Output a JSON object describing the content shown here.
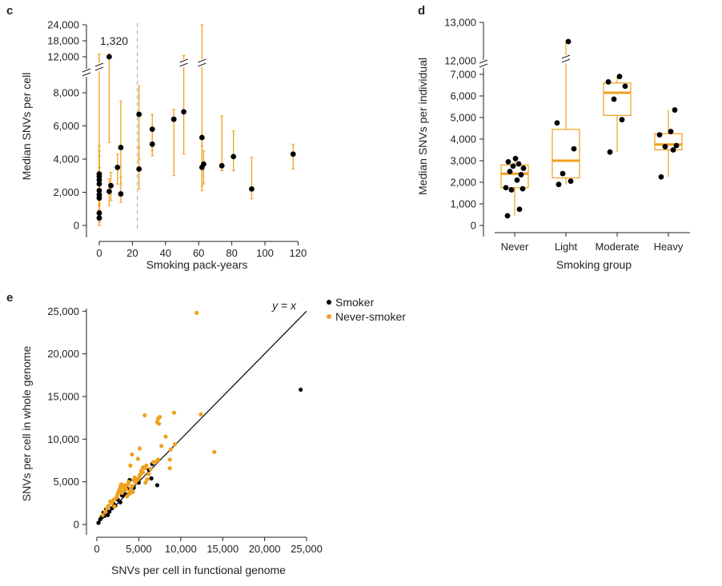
{
  "panels": {
    "c": "c",
    "d": "d",
    "e": "e"
  },
  "colors": {
    "smoker": "#000000",
    "never_smoker": "#f0a01e",
    "axis": "#231f20",
    "dashed": "#b3b3b3"
  },
  "chart_data": [
    {
      "panel": "c",
      "type": "scatter",
      "xlabel": "Smoking pack-years",
      "ylabel": "Median SNVs per cell",
      "xlim": [
        0,
        120
      ],
      "x_ticks": [
        "0",
        "20",
        "40",
        "60",
        "80",
        "100",
        "120"
      ],
      "y_ticks_lower": [
        "0",
        "2,000",
        "4,000",
        "6,000",
        "8,000"
      ],
      "y_ticks_upper": [
        "12,000",
        "18,000",
        "24,000"
      ],
      "broken_y_axis": true,
      "annotation": "1,320",
      "reference_line_x": 23,
      "points": [
        {
          "x": 0,
          "y": 450,
          "lo": 0,
          "hi": 1500
        },
        {
          "x": 0,
          "y": 750,
          "lo": 200,
          "hi": 2000
        },
        {
          "x": 0,
          "y": 1650,
          "lo": 600,
          "hi": 3000
        },
        {
          "x": 0,
          "y": 1850,
          "lo": 800,
          "hi": 3200
        },
        {
          "x": 0,
          "y": 2100,
          "lo": 900,
          "hi": 3500
        },
        {
          "x": 0,
          "y": 2500,
          "lo": 1200,
          "hi": 4200
        },
        {
          "x": 0,
          "y": 2750,
          "lo": 1300,
          "hi": 4500
        },
        {
          "x": 0,
          "y": 2950,
          "lo": 1500,
          "hi": 4800
        },
        {
          "x": 0,
          "y": 3100,
          "lo": 1600,
          "hi": 13000
        },
        {
          "x": 6,
          "y": 12000,
          "lo": 5000,
          "hi": 13000
        },
        {
          "x": 6,
          "y": 2050,
          "lo": 1200,
          "hi": 2800
        },
        {
          "x": 7,
          "y": 2400,
          "lo": 1500,
          "hi": 3200
        },
        {
          "x": 11,
          "y": 3500,
          "lo": 2500,
          "hi": 4300
        },
        {
          "x": 13,
          "y": 1900,
          "lo": 1400,
          "hi": 2900
        },
        {
          "x": 13,
          "y": 4700,
          "lo": 2500,
          "hi": 7500
        },
        {
          "x": 24,
          "y": 6700,
          "lo": 4000,
          "hi": 8400
        },
        {
          "x": 24,
          "y": 3400,
          "lo": 2200,
          "hi": 4700
        },
        {
          "x": 32,
          "y": 5800,
          "lo": 4500,
          "hi": 6700
        },
        {
          "x": 32,
          "y": 4900,
          "lo": 4200,
          "hi": 5800
        },
        {
          "x": 45,
          "y": 6400,
          "lo": 3000,
          "hi": 7000
        },
        {
          "x": 51,
          "y": 6850,
          "lo": 4300,
          "hi": 12500
        },
        {
          "x": 62,
          "y": 5300,
          "lo": 2100,
          "hi": 24000
        },
        {
          "x": 62,
          "y": 3500,
          "lo": 2400,
          "hi": 4800
        },
        {
          "x": 63,
          "y": 3700,
          "lo": 2500,
          "hi": 4500
        },
        {
          "x": 74,
          "y": 3600,
          "lo": 3300,
          "hi": 6600
        },
        {
          "x": 81,
          "y": 4150,
          "lo": 3300,
          "hi": 5700
        },
        {
          "x": 92,
          "y": 2200,
          "lo": 1600,
          "hi": 4100
        },
        {
          "x": 117,
          "y": 4300,
          "lo": 3400,
          "hi": 4900
        }
      ]
    },
    {
      "panel": "d",
      "type": "box",
      "xlabel": "Smoking group",
      "ylabel": "Median SNVs per individual",
      "categories": [
        "Never",
        "Light",
        "Moderate",
        "Heavy"
      ],
      "y_ticks_lower": [
        "0",
        "1,000",
        "2,000",
        "3,000",
        "4,000",
        "5,000",
        "6,000",
        "7,000"
      ],
      "y_ticks_upper": [
        "12,000",
        "13,000"
      ],
      "broken_y_axis": true,
      "boxes": [
        {
          "name": "Never",
          "q1": 1750,
          "median": 2400,
          "q3": 2800,
          "whisker_low": 450,
          "whisker_high": 3150,
          "points": [
            450,
            750,
            1650,
            1700,
            1750,
            2100,
            2350,
            2500,
            2650,
            2750,
            2850,
            2950,
            3100
          ]
        },
        {
          "name": "Light",
          "q1": 2200,
          "median": 3000,
          "q3": 4450,
          "whisker_low": 1900,
          "whisker_high": 12500,
          "points": [
            1900,
            2050,
            2400,
            3550,
            4750,
            12500
          ]
        },
        {
          "name": "Moderate",
          "q1": 5100,
          "median": 6150,
          "q3": 6600,
          "whisker_low": 3400,
          "whisker_high": 6900,
          "points": [
            3400,
            4900,
            5850,
            6450,
            6650,
            6900
          ]
        },
        {
          "name": "Heavy",
          "q1": 3500,
          "median": 3750,
          "q3": 4250,
          "whisker_low": 2250,
          "whisker_high": 5350,
          "points": [
            2250,
            3500,
            3650,
            3700,
            4200,
            4350,
            5350
          ]
        }
      ]
    },
    {
      "panel": "e",
      "type": "scatter",
      "xlabel": "SNVs per cell in functional genome",
      "ylabel": "SNVs per cell in whole genome",
      "xlim": [
        0,
        25000
      ],
      "ylim": [
        0,
        25000
      ],
      "x_ticks": [
        "0",
        "5,000",
        "10,000",
        "15,000",
        "20,000",
        "25,000"
      ],
      "y_ticks": [
        "0",
        "5,000",
        "10,000",
        "15,000",
        "20,000",
        "25,000"
      ],
      "identity_label": "y = x",
      "legend": [
        "Smoker",
        "Never-smoker"
      ],
      "series": [
        {
          "name": "Smoker",
          "points": [
            [
              200,
              200
            ],
            [
              400,
              600
            ],
            [
              600,
              900
            ],
            [
              800,
              1400
            ],
            [
              900,
              1000
            ],
            [
              1100,
              1800
            ],
            [
              1300,
              1100
            ],
            [
              1500,
              1500
            ],
            [
              1800,
              1900
            ],
            [
              2000,
              2400
            ],
            [
              2200,
              2200
            ],
            [
              2500,
              2900
            ],
            [
              2800,
              2600
            ],
            [
              3000,
              3400
            ],
            [
              3300,
              3600
            ],
            [
              3600,
              4200
            ],
            [
              3900,
              5200
            ],
            [
              4400,
              4300
            ],
            [
              5000,
              4900
            ],
            [
              6200,
              6400
            ],
            [
              6500,
              5400
            ],
            [
              6600,
              7100
            ],
            [
              7200,
              4600
            ],
            [
              24300,
              15800
            ]
          ]
        },
        {
          "name": "Never-smoker",
          "points": [
            [
              700,
              1100
            ],
            [
              1000,
              1500
            ],
            [
              1200,
              1900
            ],
            [
              1400,
              2200
            ],
            [
              1600,
              2700
            ],
            [
              1800,
              2500
            ],
            [
              2000,
              2900
            ],
            [
              2100,
              2100
            ],
            [
              2300,
              3100
            ],
            [
              2400,
              3300
            ],
            [
              2500,
              3600
            ],
            [
              2600,
              3900
            ],
            [
              2700,
              4100
            ],
            [
              2800,
              4400
            ],
            [
              2900,
              4700
            ],
            [
              3000,
              3700
            ],
            [
              3100,
              3900
            ],
            [
              3200,
              4300
            ],
            [
              3300,
              4600
            ],
            [
              3400,
              4400
            ],
            [
              3500,
              4100
            ],
            [
              3600,
              3300
            ],
            [
              3700,
              4700
            ],
            [
              3800,
              5000
            ],
            [
              3900,
              3600
            ],
            [
              4000,
              3900
            ],
            [
              4100,
              4300
            ],
            [
              4200,
              4500
            ],
            [
              4300,
              3800
            ],
            [
              4400,
              5200
            ],
            [
              4500,
              5500
            ],
            [
              4600,
              4900
            ],
            [
              4800,
              5200
            ],
            [
              5000,
              5400
            ],
            [
              5100,
              5700
            ],
            [
              5200,
              5900
            ],
            [
              5300,
              6300
            ],
            [
              5500,
              6100
            ],
            [
              5700,
              6600
            ],
            [
              5900,
              6900
            ],
            [
              4000,
              6900
            ],
            [
              4200,
              8200
            ],
            [
              5100,
              8900
            ],
            [
              4900,
              7700
            ],
            [
              5500,
              6700
            ],
            [
              6200,
              5900
            ],
            [
              6400,
              6500
            ],
            [
              5800,
              4900
            ],
            [
              6000,
              5300
            ],
            [
              6700,
              7300
            ],
            [
              7100,
              7400
            ],
            [
              7300,
              7600
            ],
            [
              7400,
              11800
            ],
            [
              7300,
              12400
            ],
            [
              7200,
              12000
            ],
            [
              7500,
              12600
            ],
            [
              7700,
              9200
            ],
            [
              8200,
              10300
            ],
            [
              8700,
              6600
            ],
            [
              8700,
              7600
            ],
            [
              8800,
              8800
            ],
            [
              9300,
              9400
            ],
            [
              9200,
              13100
            ],
            [
              5700,
              12800
            ],
            [
              12400,
              12900
            ],
            [
              14000,
              8500
            ],
            [
              11900,
              24800
            ]
          ]
        }
      ]
    }
  ]
}
